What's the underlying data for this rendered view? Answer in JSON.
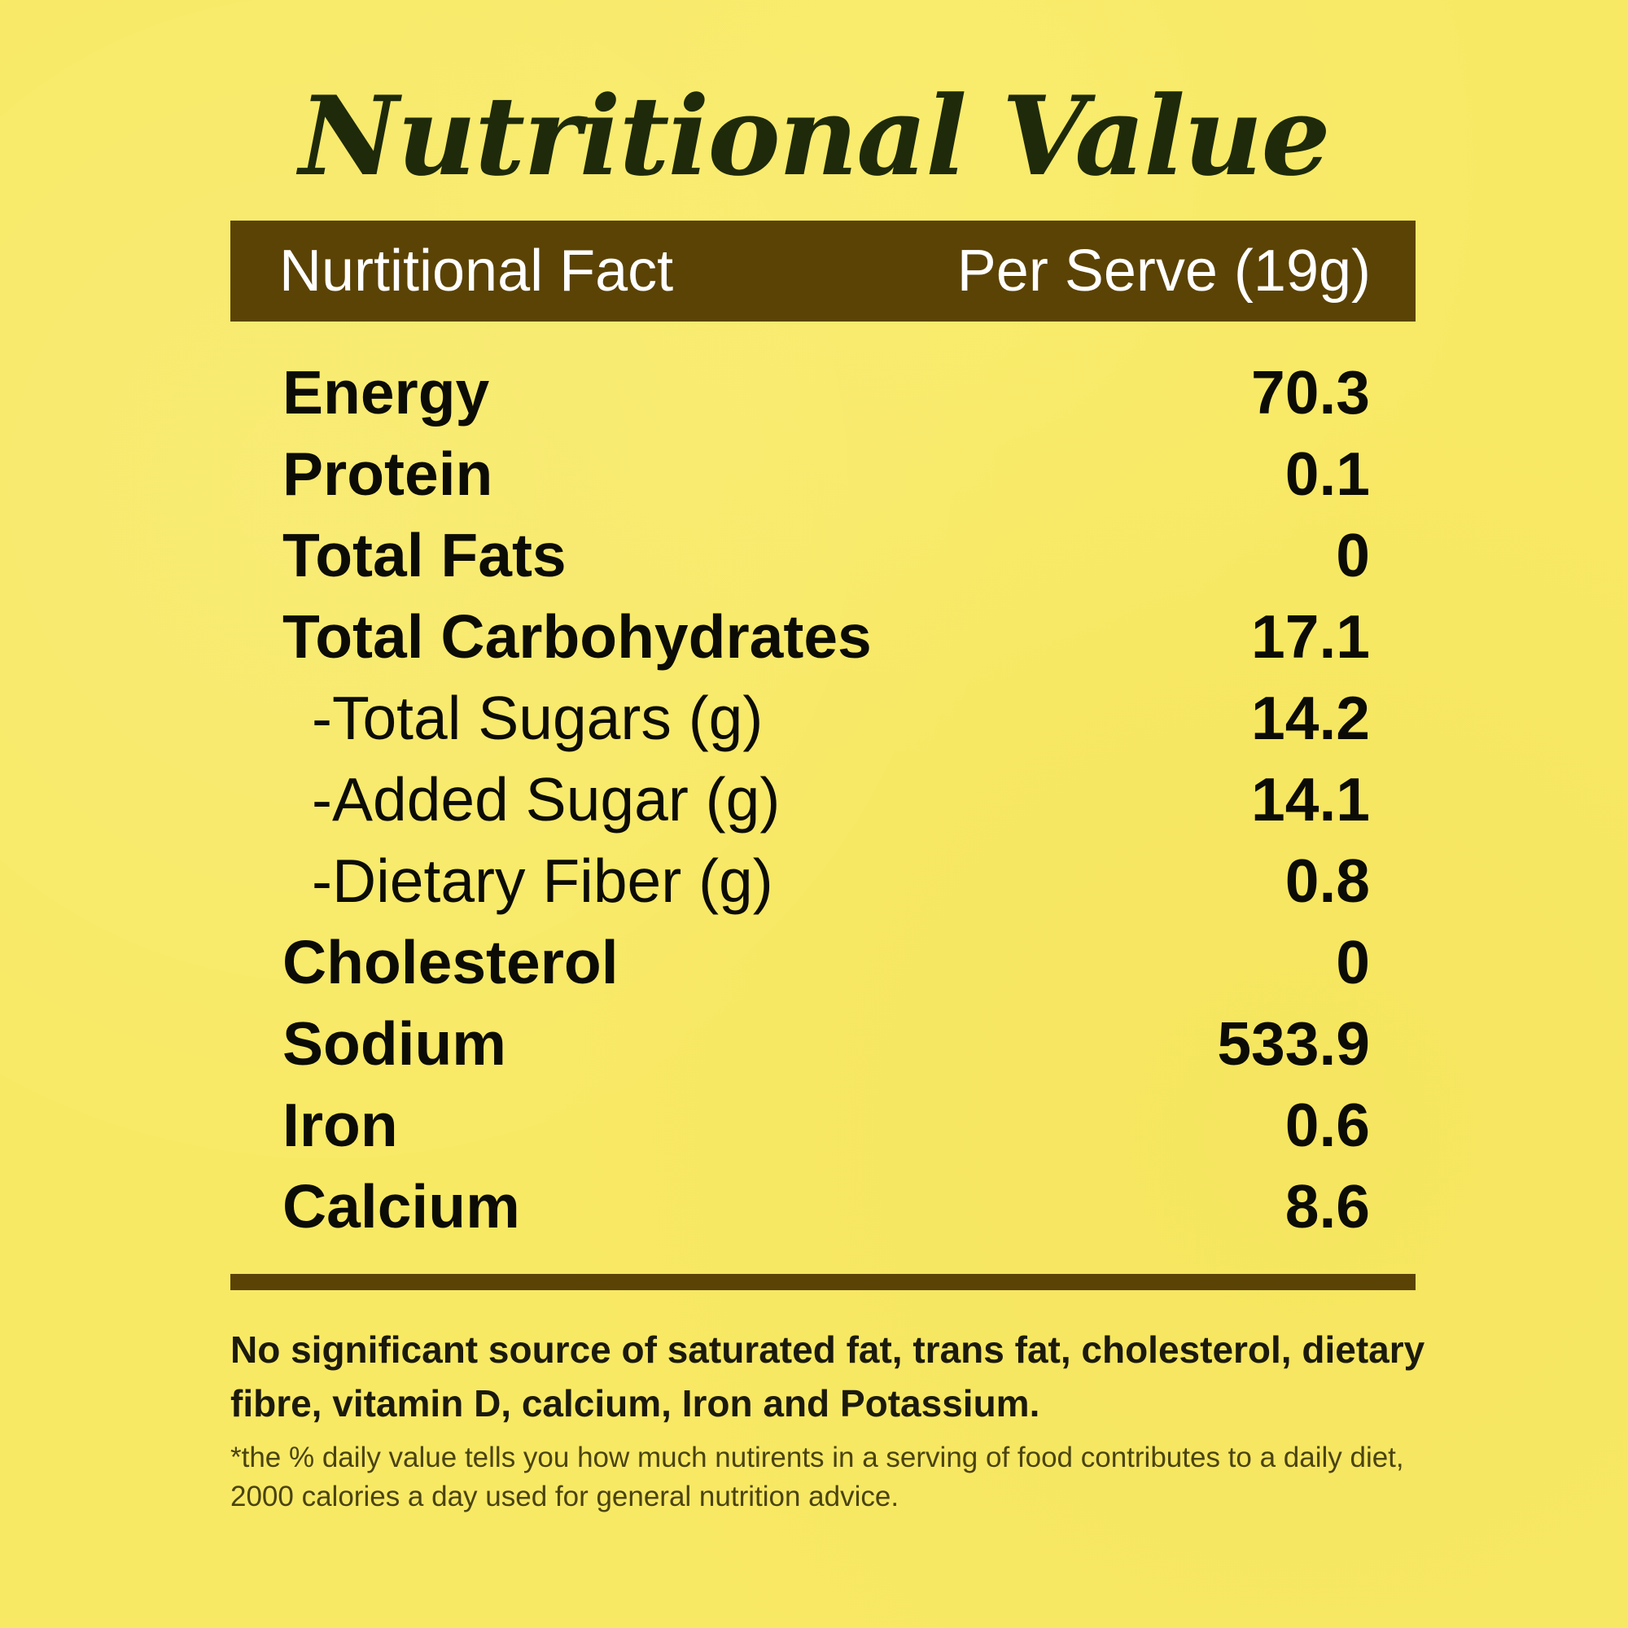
{
  "title": "Nutritional Value",
  "header": {
    "left": "Nurtitional Fact",
    "right": "Per Serve (19g)"
  },
  "rows": [
    {
      "label": "Energy",
      "value": "70.3",
      "sub": false
    },
    {
      "label": "Protein",
      "value": "0.1",
      "sub": false
    },
    {
      "label": "Total Fats",
      "value": "0",
      "sub": false
    },
    {
      "label": "Total Carbohydrates",
      "value": "17.1",
      "sub": false
    },
    {
      "label": "-Total Sugars (g)",
      "value": "14.2",
      "sub": true
    },
    {
      "label": "-Added Sugar (g)",
      "value": "14.1",
      "sub": true
    },
    {
      "label": "-Dietary Fiber (g)",
      "value": "0.8",
      "sub": true
    },
    {
      "label": "Cholesterol",
      "value": "0",
      "sub": false
    },
    {
      "label": "Sodium",
      "value": "533.9",
      "sub": false
    },
    {
      "label": "Iron",
      "value": "0.6",
      "sub": false
    },
    {
      "label": "Calcium",
      "value": "8.6",
      "sub": false
    }
  ],
  "note": "No significant source of saturated fat, trans fat, cholesterol, dietary fibre, vitamin D, calcium, Iron and Potassium.",
  "disclaimer": "*the % daily value tells you how much nutirents in a serving of food contributes to a daily diet, 2000 calories a day used for general nutrition advice.",
  "colors": {
    "background": "#f8e965",
    "bar": "#5b4305",
    "title": "#1e2a0a",
    "text": "#0c0c06"
  }
}
